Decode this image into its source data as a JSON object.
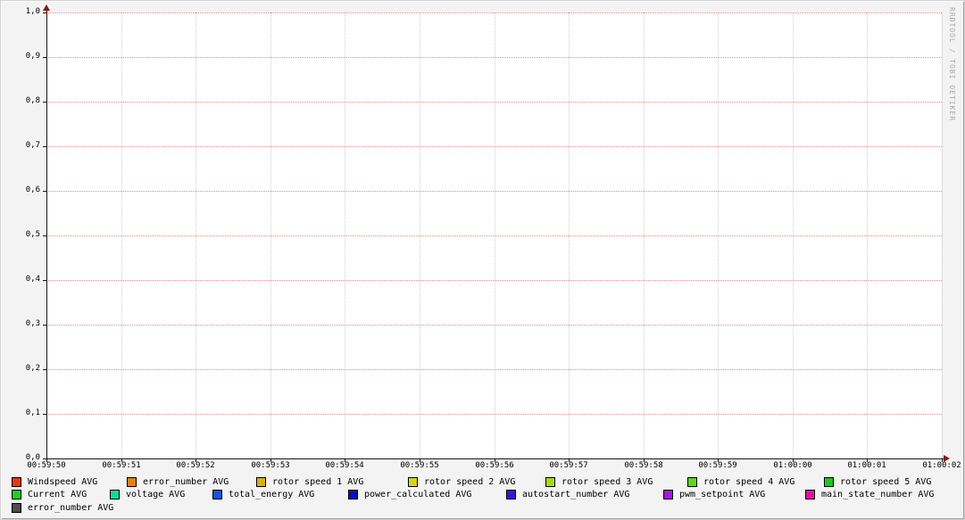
{
  "watermark": "RRDTOOL / TOBI OETIKER",
  "colors": {
    "background": "#F3F3F3",
    "canvas": "#FFFFFF",
    "major_grid": "#D64848",
    "minor_grid": "#7D7D7D",
    "axis": "#161616",
    "arrow": "#7E1E14",
    "watermark_text": "#A9A9A9"
  },
  "chart_data": {
    "type": "line",
    "title": "",
    "xlabel": "",
    "ylabel": "",
    "grid": true,
    "legend_position": "bottom",
    "ylim": [
      0,
      1
    ],
    "x_ticks": [
      "00:59:50",
      "00:59:51",
      "00:59:52",
      "00:59:53",
      "00:59:54",
      "00:59:55",
      "00:59:56",
      "00:59:57",
      "00:59:58",
      "00:59:59",
      "01:00:00",
      "01:00:01",
      "01:00:02"
    ],
    "y_ticks": [
      "0,0",
      "0,1",
      "0,2",
      "0,3",
      "0,4",
      "0,5",
      "0,6",
      "0,7",
      "0,8",
      "0,9",
      "1,0"
    ],
    "series": [
      {
        "name": "Windspeed AVG",
        "color": "#E5390F",
        "values": []
      },
      {
        "name": "error_number AVG",
        "color": "#E08119",
        "values": []
      },
      {
        "name": "rotor speed 1 AVG",
        "color": "#DBAE16",
        "values": []
      },
      {
        "name": "rotor speed 2 AVG",
        "color": "#D7D41B",
        "values": []
      },
      {
        "name": "rotor speed 3 AVG",
        "color": "#A6DB14",
        "values": []
      },
      {
        "name": "rotor speed 4 AVG",
        "color": "#60D617",
        "values": []
      },
      {
        "name": "rotor speed 5 AVG",
        "color": "#1FC51F",
        "values": []
      },
      {
        "name": "Current AVG",
        "color": "#14D32A",
        "values": []
      },
      {
        "name": "voltage AVG",
        "color": "#10DB97",
        "values": []
      },
      {
        "name": "total_energy AVG",
        "color": "#1455E0",
        "values": []
      },
      {
        "name": "power_calculated AVG",
        "color": "#0E0EC0",
        "values": []
      },
      {
        "name": "autostart_number AVG",
        "color": "#3A11DB",
        "values": []
      },
      {
        "name": "pwm_setpoint AVG",
        "color": "#A912E2",
        "values": []
      },
      {
        "name": "main_state_number AVG",
        "color": "#E212A9",
        "values": []
      },
      {
        "name": "error_number AVG",
        "color": "#4D4D4D",
        "values": []
      }
    ],
    "legend_rows": [
      [
        0,
        1,
        2,
        3,
        4,
        5,
        6
      ],
      [
        7,
        8,
        9,
        10,
        11,
        12,
        13
      ],
      [
        14
      ]
    ]
  }
}
